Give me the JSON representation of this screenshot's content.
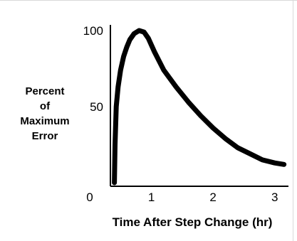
{
  "chart_data": {
    "type": "line",
    "title": "",
    "xlabel": "Time After Step Change (hr)",
    "ylabel": [
      "Percent",
      "of",
      "Maximum",
      "Error"
    ],
    "xlim": [
      0,
      3.2
    ],
    "ylim": [
      0,
      100
    ],
    "x_ticks": [
      {
        "value": 0,
        "label": "0"
      },
      {
        "value": 1,
        "label": "1"
      },
      {
        "value": 2,
        "label": "2"
      },
      {
        "value": 3,
        "label": "3"
      }
    ],
    "y_ticks": [
      {
        "value": 50,
        "label": "50"
      },
      {
        "value": 100,
        "label": "100"
      }
    ],
    "grid": false,
    "series": [
      {
        "color": "#000000",
        "x": [
          0.4,
          0.41,
          0.43,
          0.46,
          0.5,
          0.55,
          0.6,
          0.65,
          0.72,
          0.8,
          0.88,
          0.95,
          1.05,
          1.2,
          1.4,
          1.6,
          1.8,
          2.0,
          2.2,
          2.4,
          2.6,
          2.8,
          3.0,
          3.15
        ],
        "y": [
          0,
          25,
          50,
          63,
          74,
          83,
          89,
          94,
          98,
          100,
          99,
          95,
          86,
          74,
          63,
          53,
          44,
          36,
          29,
          23,
          19,
          15,
          13,
          12
        ]
      }
    ]
  }
}
